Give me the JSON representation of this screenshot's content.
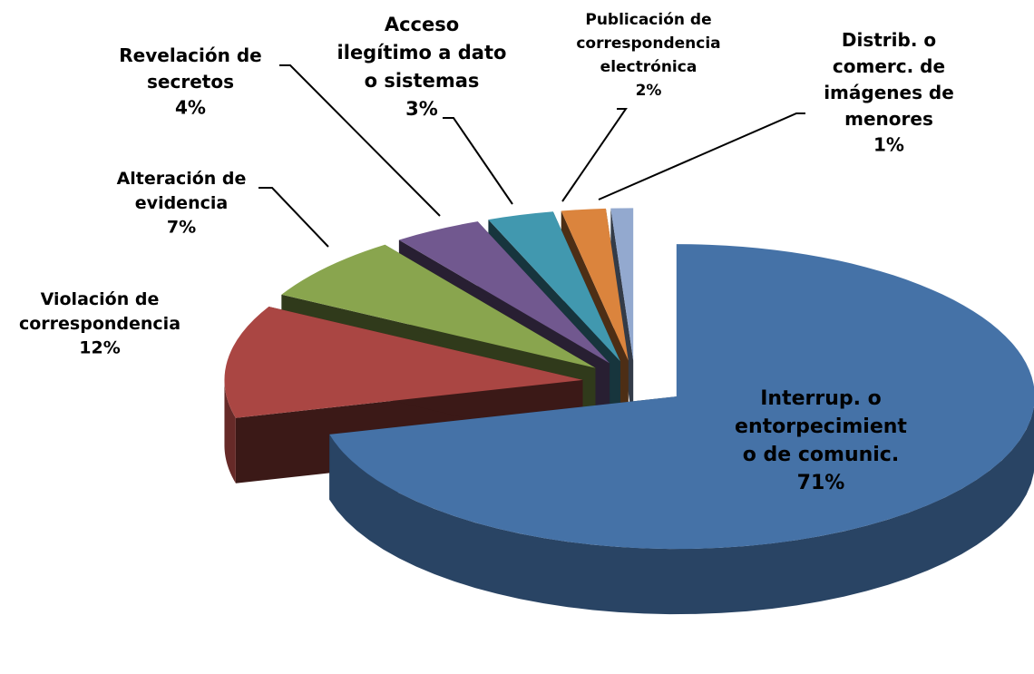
{
  "chart_data": {
    "type": "pie",
    "categories": [
      "Interrup. o\nentorpecimient\no de comunic.",
      "Violación de\ncorrespondencia",
      "Alteración de\nevidencia",
      "Revelación de\nsecretos",
      "Acceso\nilegítimo a dato\no sistemas",
      "Publicación de\ncorrespondencia\nelectrónica",
      "Distrib. o\ncomerc. de\nimágenes de\nmenores"
    ],
    "values": [
      71,
      12,
      7,
      4,
      3,
      2,
      1
    ],
    "value_labels": [
      "71%",
      "12%",
      "7%",
      "4%",
      "3%",
      "2%",
      "1%"
    ],
    "colors": [
      "#4572a7",
      "#aa4643",
      "#89a54e",
      "#71588f",
      "#4198af",
      "#db843d",
      "#93a9cf"
    ]
  }
}
